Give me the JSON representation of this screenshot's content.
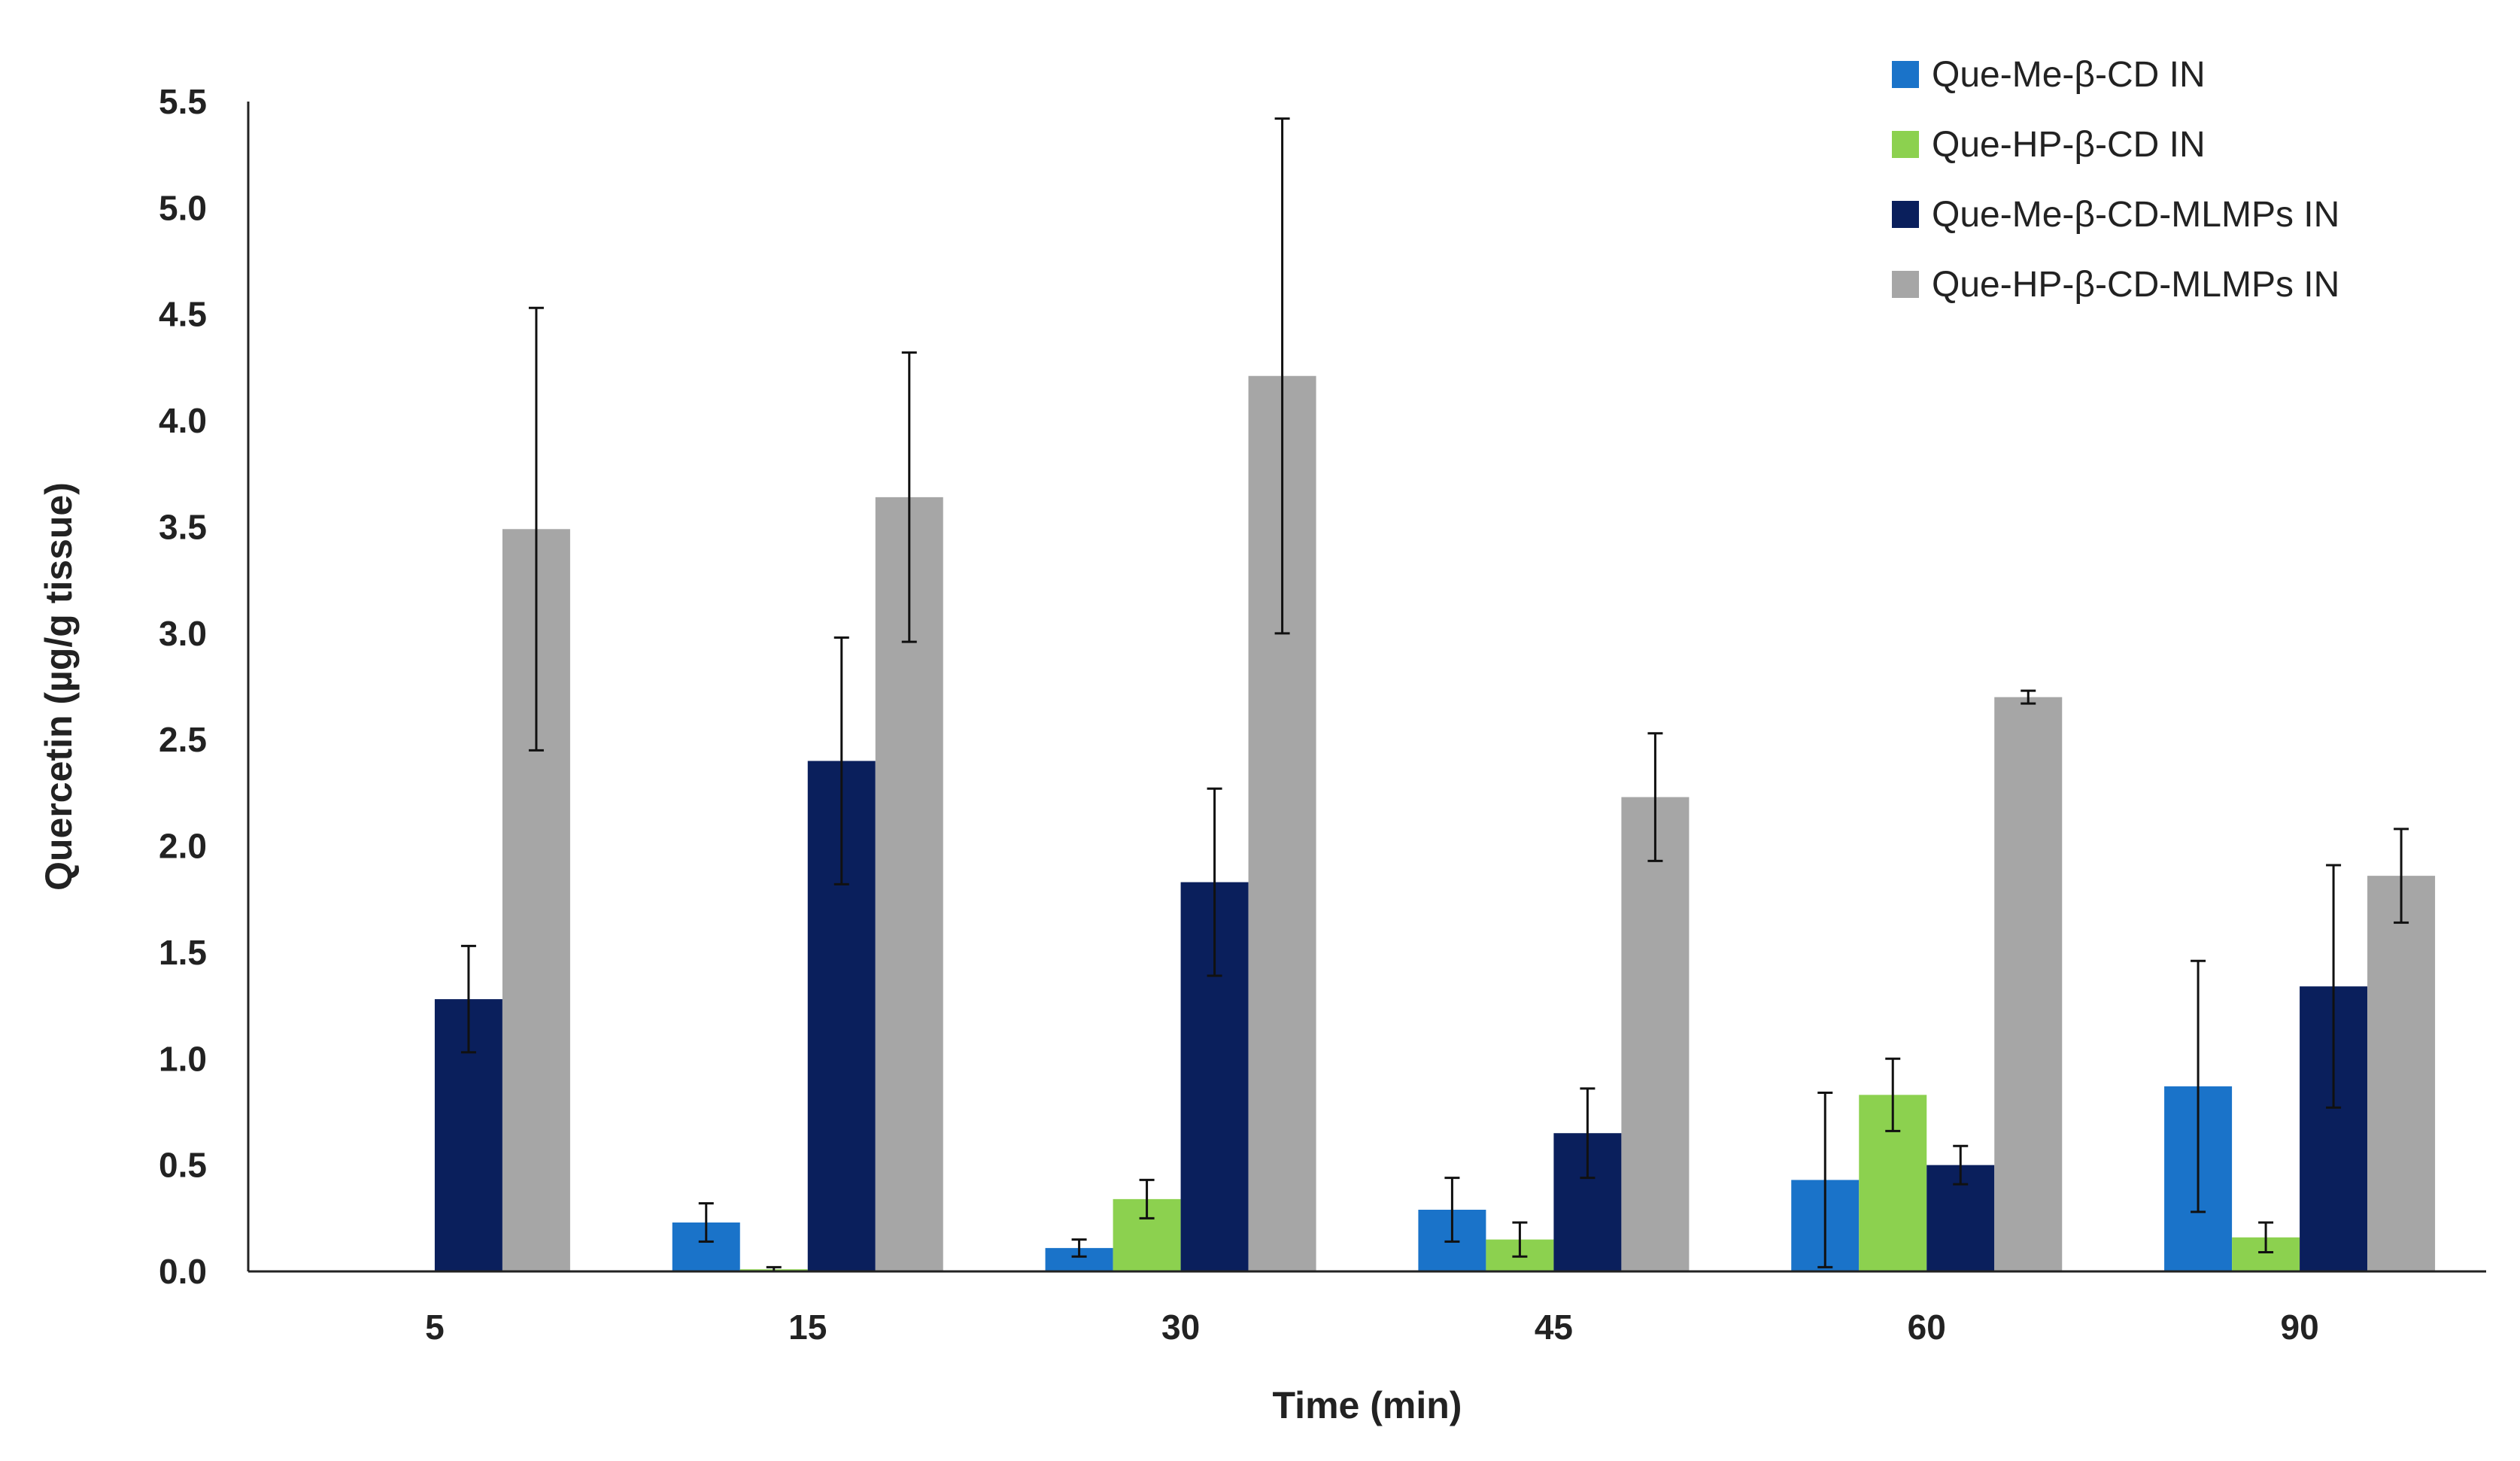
{
  "chart_data": {
    "type": "bar",
    "title": "",
    "xlabel": "Time (min)",
    "ylabel": "Quercetin (µg/g tissue)",
    "ylim": [
      0,
      5.5
    ],
    "yticks": [
      "0.0",
      "0.5",
      "1.0",
      "1.5",
      "2.0",
      "2.5",
      "3.0",
      "3.5",
      "4.0",
      "4.5",
      "5.0",
      "5.5"
    ],
    "grid": false,
    "legend_position": "top-right",
    "categories": [
      "5",
      "15",
      "30",
      "45",
      "60",
      "90"
    ],
    "series": [
      {
        "name": "Que-Me-β-CD IN",
        "color": "#1a73c9",
        "values": [
          null,
          0.23,
          0.11,
          0.29,
          0.43,
          0.87
        ],
        "errors": [
          null,
          0.09,
          0.04,
          0.15,
          0.41,
          0.59
        ]
      },
      {
        "name": "Que-HP-β-CD IN",
        "color": "#8cd14f",
        "values": [
          null,
          0.01,
          0.34,
          0.15,
          0.83,
          0.16
        ],
        "errors": [
          null,
          0.01,
          0.09,
          0.08,
          0.17,
          0.07
        ]
      },
      {
        "name": "Que-Me-β-CD-MLMPs IN",
        "color": "#0a1f5c",
        "values": [
          1.28,
          2.4,
          1.83,
          0.65,
          0.5,
          1.34
        ],
        "errors": [
          0.25,
          0.58,
          0.44,
          0.21,
          0.09,
          0.57
        ]
      },
      {
        "name": "Que-HP-β-CD-MLMPs IN",
        "color": "#a6a6a6",
        "values": [
          3.49,
          3.64,
          4.21,
          2.23,
          2.7,
          1.86
        ],
        "errors": [
          1.04,
          0.68,
          1.21,
          0.3,
          0.03,
          0.22
        ]
      }
    ]
  }
}
